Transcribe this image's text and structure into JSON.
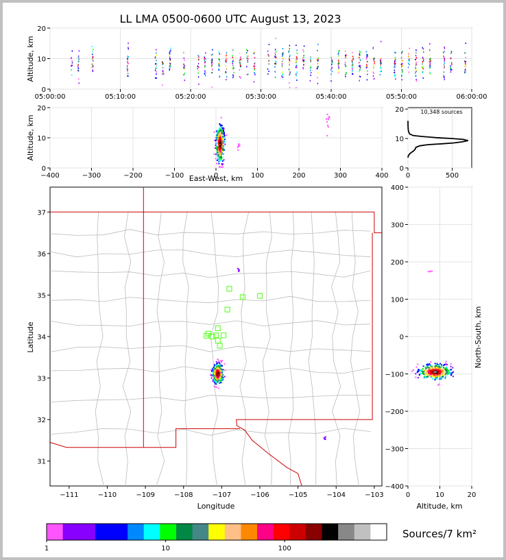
{
  "title": "LL LMA 0500-0600 UTC August 13, 2023",
  "source_count": "10,348 sources",
  "colorbar_label": "Sources/7 km²",
  "colorbar": {
    "colors": [
      "#ff55ff",
      "#8800ff",
      "#8800ff",
      "#0000ff",
      "#0000ff",
      "#0088ff",
      "#00ffff",
      "#00ff00",
      "#008844",
      "#448888",
      "#ffff00",
      "#ffc088",
      "#ff8800",
      "#ff0088",
      "#ff0000",
      "#cc0000",
      "#880000",
      "#000000",
      "#888888",
      "#c0c0c0",
      "#ffffff"
    ],
    "ticks": [
      "1",
      "10",
      "100"
    ]
  },
  "chart_data": [
    {
      "type": "scatter",
      "name_hint": "time-height",
      "ylabel": "Altitude, km",
      "xticks": [
        "05:00:00",
        "05:10:00",
        "05:20:00",
        "05:30:00",
        "05:40:00",
        "05:50:00",
        "06:00:00"
      ],
      "yticks": [
        "0",
        "10",
        "20"
      ],
      "xlim": [
        "05:00:00",
        "06:00:00"
      ],
      "ylim": [
        0,
        20
      ],
      "grid": true,
      "column_minutes": [
        3,
        4,
        6,
        11,
        15,
        16,
        17,
        19,
        21,
        22,
        23,
        24,
        25,
        26,
        27,
        28,
        29,
        31,
        32,
        33,
        34,
        35,
        36,
        37,
        38,
        40,
        41,
        42,
        43,
        44,
        45,
        46,
        47,
        49,
        50,
        51,
        52,
        53,
        54,
        56,
        57,
        59
      ]
    },
    {
      "type": "scatter",
      "name_hint": "east-west-altitude",
      "xlabel": "East-West, km",
      "ylabel": "Altitude, km",
      "xticks": [
        "−400",
        "−300",
        "−200",
        "−100",
        "0",
        "100",
        "200",
        "300",
        "400"
      ],
      "yticks": [
        "0",
        "10",
        "20"
      ],
      "xlim": [
        -400,
        400
      ],
      "ylim": [
        0,
        20
      ],
      "grid": true,
      "clusters": [
        {
          "x": 10,
          "y": 8,
          "sx": 10,
          "sy": 3
        },
        {
          "x": 55,
          "y": 7,
          "sx": 2,
          "sy": 1
        },
        {
          "x": 270,
          "y": 15,
          "sx": 4,
          "sy": 2
        }
      ]
    },
    {
      "type": "line",
      "name_hint": "altitude-histogram",
      "xticks": [
        "0",
        "500"
      ],
      "yticks": [
        "0",
        "10",
        "20"
      ],
      "xlim": [
        0,
        720
      ],
      "ylim": [
        0,
        20.5
      ],
      "grid": true,
      "points": [
        [
          0,
          3.5
        ],
        [
          5,
          4.2
        ],
        [
          20,
          4.8
        ],
        [
          40,
          5.3
        ],
        [
          60,
          5.7
        ],
        [
          80,
          6.3
        ],
        [
          90,
          7.0
        ],
        [
          130,
          7.5
        ],
        [
          220,
          7.9
        ],
        [
          380,
          8.2
        ],
        [
          520,
          8.5
        ],
        [
          620,
          8.9
        ],
        [
          680,
          9.3
        ],
        [
          620,
          9.7
        ],
        [
          500,
          10.0
        ],
        [
          320,
          10.3
        ],
        [
          160,
          10.7
        ],
        [
          60,
          11.0
        ],
        [
          20,
          11.5
        ],
        [
          8,
          12.3
        ],
        [
          3,
          13.0
        ],
        [
          1,
          14.5
        ],
        [
          0,
          16
        ]
      ]
    },
    {
      "type": "scatter",
      "name_hint": "plan-view",
      "xlabel": "Longitude",
      "ylabel": "Latitude",
      "xticks": [
        "−111",
        "−110",
        "−109",
        "−108",
        "−107",
        "−106",
        "−105",
        "−104",
        "−103"
      ],
      "yticks": [
        "31",
        "32",
        "33",
        "34",
        "35",
        "36",
        "37"
      ],
      "xlim": [
        -111.5,
        -102.8
      ],
      "ylim": [
        30.4,
        37.6
      ],
      "stations": [
        [
          -106.8,
          35.15
        ],
        [
          -106.45,
          34.95
        ],
        [
          -106.0,
          34.98
        ],
        [
          -106.85,
          34.65
        ],
        [
          -107.1,
          34.2
        ],
        [
          -107.35,
          34.07
        ],
        [
          -107.4,
          34.02
        ],
        [
          -107.25,
          34.0
        ],
        [
          -107.15,
          34.03
        ],
        [
          -106.95,
          34.03
        ],
        [
          -107.1,
          33.9
        ],
        [
          -107.05,
          33.78
        ]
      ],
      "clusters": [
        {
          "x": -107.1,
          "y": 33.1,
          "sx": 0.07,
          "sy": 0.12
        },
        {
          "x": -106.55,
          "y": 35.6,
          "sx": 0.02,
          "sy": 0.02
        },
        {
          "x": -104.3,
          "y": 31.55,
          "sx": 0.02,
          "sy": 0.02
        }
      ]
    },
    {
      "type": "scatter",
      "name_hint": "north-south-altitude",
      "xlabel": "Altitude, km",
      "ylabel": "North-South, km",
      "xticks": [
        "0",
        "10",
        "20"
      ],
      "yticks": [
        "−400",
        "−300",
        "−200",
        "−100",
        "0",
        "100",
        "200",
        "300",
        "400"
      ],
      "xlim": [
        0,
        20
      ],
      "ylim": [
        -400,
        400
      ],
      "grid": true,
      "clusters": [
        {
          "x": 8.5,
          "y": -95,
          "sx": 2.5,
          "sy": 10
        },
        {
          "x": 7,
          "y": 175,
          "sx": 0.5,
          "sy": 2
        }
      ]
    }
  ]
}
